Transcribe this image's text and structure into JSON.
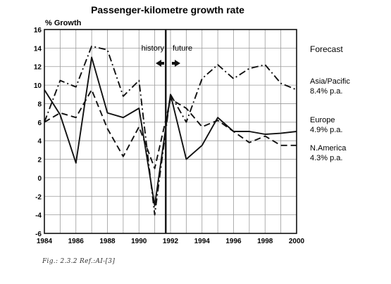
{
  "chart_data": {
    "type": "line",
    "title": "Passenger-kilometre growth rate",
    "ylabel": "% Growth",
    "xlabel": "",
    "xlim": [
      1984,
      2000
    ],
    "ylim": [
      -6,
      16
    ],
    "x_ticks": [
      1984,
      1986,
      1988,
      1990,
      1992,
      1994,
      1996,
      1998,
      2000
    ],
    "y_ticks": [
      -6,
      -4,
      -2,
      0,
      2,
      4,
      6,
      8,
      10,
      12,
      14,
      16
    ],
    "grid": true,
    "divider_x": 1991.7,
    "annotations": {
      "history": "history",
      "future": "future",
      "forecast": "Forecast"
    },
    "series": [
      {
        "name": "Asia/Pacific",
        "rate": "8.4% p.a.",
        "style": "dash-dot",
        "x": [
          1984,
          1985,
          1986,
          1987,
          1988,
          1989,
          1990,
          1991,
          1992,
          1993,
          1994,
          1995,
          1996,
          1997,
          1998,
          1999,
          2000
        ],
        "values": [
          6.0,
          10.5,
          9.8,
          14.2,
          13.8,
          8.8,
          10.5,
          -4.0,
          9.0,
          6.0,
          10.7,
          12.2,
          10.7,
          11.8,
          12.2,
          10.2,
          9.5
        ]
      },
      {
        "name": "Europe",
        "rate": "4.9% p.a.",
        "style": "solid",
        "x": [
          1984,
          1985,
          1986,
          1987,
          1988,
          1989,
          1990,
          1991,
          1992,
          1993,
          1994,
          1995,
          1996,
          1997,
          1998,
          1999,
          2000
        ],
        "values": [
          9.5,
          6.8,
          1.6,
          13.0,
          7.0,
          6.5,
          7.5,
          -3.0,
          9.0,
          2.0,
          3.5,
          6.5,
          5.0,
          5.0,
          4.7,
          4.8,
          5.0
        ]
      },
      {
        "name": "N.America",
        "rate": "4.3% p.a.",
        "style": "dashed",
        "x": [
          1984,
          1985,
          1986,
          1987,
          1988,
          1989,
          1990,
          1991,
          1992,
          1993,
          1994,
          1995,
          1996,
          1997,
          1998,
          1999,
          2000
        ],
        "values": [
          6.0,
          7.0,
          6.5,
          9.5,
          5.3,
          2.3,
          5.5,
          1.0,
          8.5,
          7.5,
          5.5,
          6.2,
          5.0,
          3.8,
          4.5,
          3.5,
          3.5
        ]
      }
    ]
  },
  "caption": "Fig.: 2.3.2 Ref.:AI-[3]"
}
